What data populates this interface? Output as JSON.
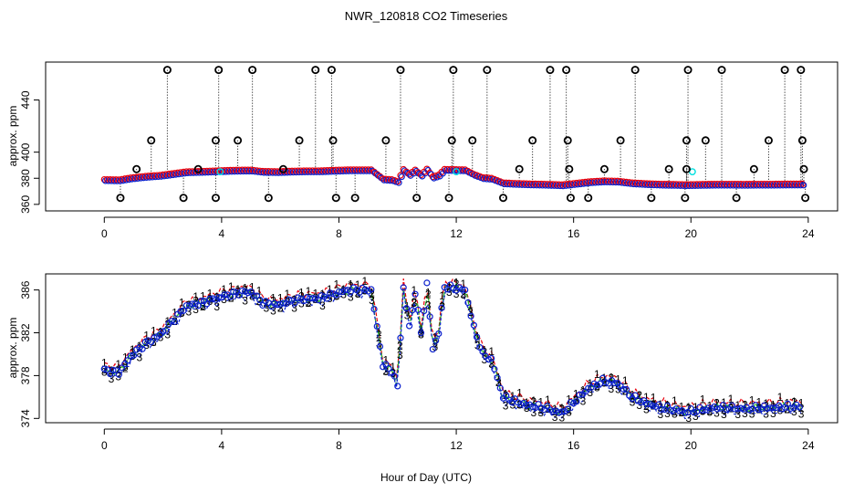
{
  "colors": {
    "black": "#000000",
    "red": "#e8000b",
    "green": "#22b822",
    "blue": "#0a1fcc",
    "cyan": "#00e0e0"
  },
  "chart_data": [
    {
      "type": "scatter",
      "title": "NWR_120818  CO2 Timeseries",
      "xlabel": "",
      "ylabel": "approx. ppm",
      "xlim": [
        -2,
        25
      ],
      "ylim": [
        355,
        469
      ],
      "xticks": [
        0,
        4,
        8,
        12,
        16,
        20,
        24
      ],
      "yticks": [
        360,
        380,
        400,
        440
      ],
      "series": [
        {
          "name": "qc_black",
          "color": "#000000"
        },
        {
          "name": "data_red",
          "color": "#e8000b"
        },
        {
          "name": "data_blue",
          "color": "#0a1fcc"
        },
        {
          "name": "data_cyan",
          "color": "#00e0e0"
        }
      ],
      "outliers": [
        {
          "x": 0.55,
          "y": 365
        },
        {
          "x": 1.1,
          "y": 387
        },
        {
          "x": 1.6,
          "y": 409
        },
        {
          "x": 2.15,
          "y": 463
        },
        {
          "x": 2.7,
          "y": 365
        },
        {
          "x": 3.2,
          "y": 387
        },
        {
          "x": 3.8,
          "y": 409
        },
        {
          "x": 3.8,
          "y": 365
        },
        {
          "x": 3.9,
          "y": 463
        },
        {
          "x": 4.55,
          "y": 409
        },
        {
          "x": 5.05,
          "y": 463
        },
        {
          "x": 5.6,
          "y": 365
        },
        {
          "x": 6.1,
          "y": 387
        },
        {
          "x": 6.65,
          "y": 409
        },
        {
          "x": 7.2,
          "y": 463
        },
        {
          "x": 7.75,
          "y": 463
        },
        {
          "x": 7.8,
          "y": 409
        },
        {
          "x": 7.9,
          "y": 365
        },
        {
          "x": 8.55,
          "y": 365
        },
        {
          "x": 9.6,
          "y": 409
        },
        {
          "x": 10.1,
          "y": 463
        },
        {
          "x": 10.65,
          "y": 365
        },
        {
          "x": 11.75,
          "y": 365
        },
        {
          "x": 11.85,
          "y": 409
        },
        {
          "x": 11.9,
          "y": 463
        },
        {
          "x": 12.55,
          "y": 409
        },
        {
          "x": 13.05,
          "y": 463
        },
        {
          "x": 13.6,
          "y": 365
        },
        {
          "x": 14.15,
          "y": 387
        },
        {
          "x": 14.6,
          "y": 409
        },
        {
          "x": 15.2,
          "y": 463
        },
        {
          "x": 15.75,
          "y": 463
        },
        {
          "x": 15.8,
          "y": 409
        },
        {
          "x": 15.85,
          "y": 387
        },
        {
          "x": 15.9,
          "y": 365
        },
        {
          "x": 16.5,
          "y": 365
        },
        {
          "x": 17.05,
          "y": 387
        },
        {
          "x": 17.6,
          "y": 409
        },
        {
          "x": 18.1,
          "y": 463
        },
        {
          "x": 18.65,
          "y": 365
        },
        {
          "x": 19.25,
          "y": 387
        },
        {
          "x": 19.8,
          "y": 365
        },
        {
          "x": 19.85,
          "y": 409
        },
        {
          "x": 19.9,
          "y": 463
        },
        {
          "x": 19.85,
          "y": 387
        },
        {
          "x": 20.5,
          "y": 409
        },
        {
          "x": 21.05,
          "y": 463
        },
        {
          "x": 21.55,
          "y": 365
        },
        {
          "x": 22.15,
          "y": 387
        },
        {
          "x": 22.65,
          "y": 409
        },
        {
          "x": 23.2,
          "y": 463
        },
        {
          "x": 23.75,
          "y": 463
        },
        {
          "x": 23.8,
          "y": 409
        },
        {
          "x": 23.85,
          "y": 387
        },
        {
          "x": 23.9,
          "y": 365
        }
      ],
      "cyan_points": [
        {
          "x": 3.95,
          "y": 385
        },
        {
          "x": 12.0,
          "y": 385
        },
        {
          "x": 20.05,
          "y": 385
        }
      ]
    },
    {
      "type": "line",
      "title": "",
      "xlabel": "Hour of Day (UTC)",
      "ylabel": "approx. ppm",
      "xlim": [
        -2,
        25
      ],
      "ylim": [
        373.6,
        387.5
      ],
      "xticks": [
        0,
        4,
        8,
        12,
        16,
        20,
        24
      ],
      "yticks": [
        374,
        378,
        382,
        386
      ],
      "series": [
        {
          "name": "1",
          "color": "#e8000b",
          "offset": 0.5
        },
        {
          "name": "2",
          "color": "#22b822",
          "offset": 0.0
        },
        {
          "name": "3",
          "color": "#0a1fcc",
          "offset": -0.4
        }
      ],
      "x": [
        0.0,
        0.5,
        0.9,
        1.4,
        1.9,
        2.3,
        2.8,
        3.3,
        3.8,
        4.3,
        4.7,
        5.0,
        5.4,
        5.9,
        6.4,
        6.9,
        7.3,
        7.8,
        8.3,
        8.7,
        9.1,
        9.3,
        9.5,
        9.8,
        10.0,
        10.2,
        10.4,
        10.6,
        10.8,
        11.0,
        11.2,
        11.4,
        11.6,
        11.9,
        12.3,
        12.6,
        12.9,
        13.2,
        13.6,
        14.0,
        14.5,
        15.0,
        15.6,
        16.0,
        16.5,
        17.0,
        17.5,
        18.0,
        18.5,
        19.0,
        19.5,
        19.8,
        20.3,
        20.8,
        21.3,
        21.8,
        22.3,
        22.8,
        23.3,
        23.8
      ],
      "values": [
        378.5,
        378.3,
        379.8,
        381.0,
        381.8,
        383.0,
        384.5,
        384.8,
        385.2,
        385.6,
        385.8,
        385.8,
        384.8,
        384.6,
        385.0,
        385.2,
        385.2,
        385.6,
        386.0,
        386.0,
        386.0,
        382.5,
        379.0,
        378.5,
        377.0,
        386.2,
        382.5,
        385.8,
        382.0,
        386.5,
        380.5,
        382.0,
        386.3,
        386.2,
        386.0,
        382.5,
        380.0,
        379.5,
        376.0,
        375.6,
        375.2,
        375.0,
        374.5,
        375.5,
        376.8,
        377.5,
        377.3,
        376.0,
        375.4,
        375.0,
        374.8,
        374.6,
        374.8,
        375.0,
        375.0,
        374.9,
        375.0,
        375.0,
        375.1,
        375.1
      ]
    }
  ]
}
